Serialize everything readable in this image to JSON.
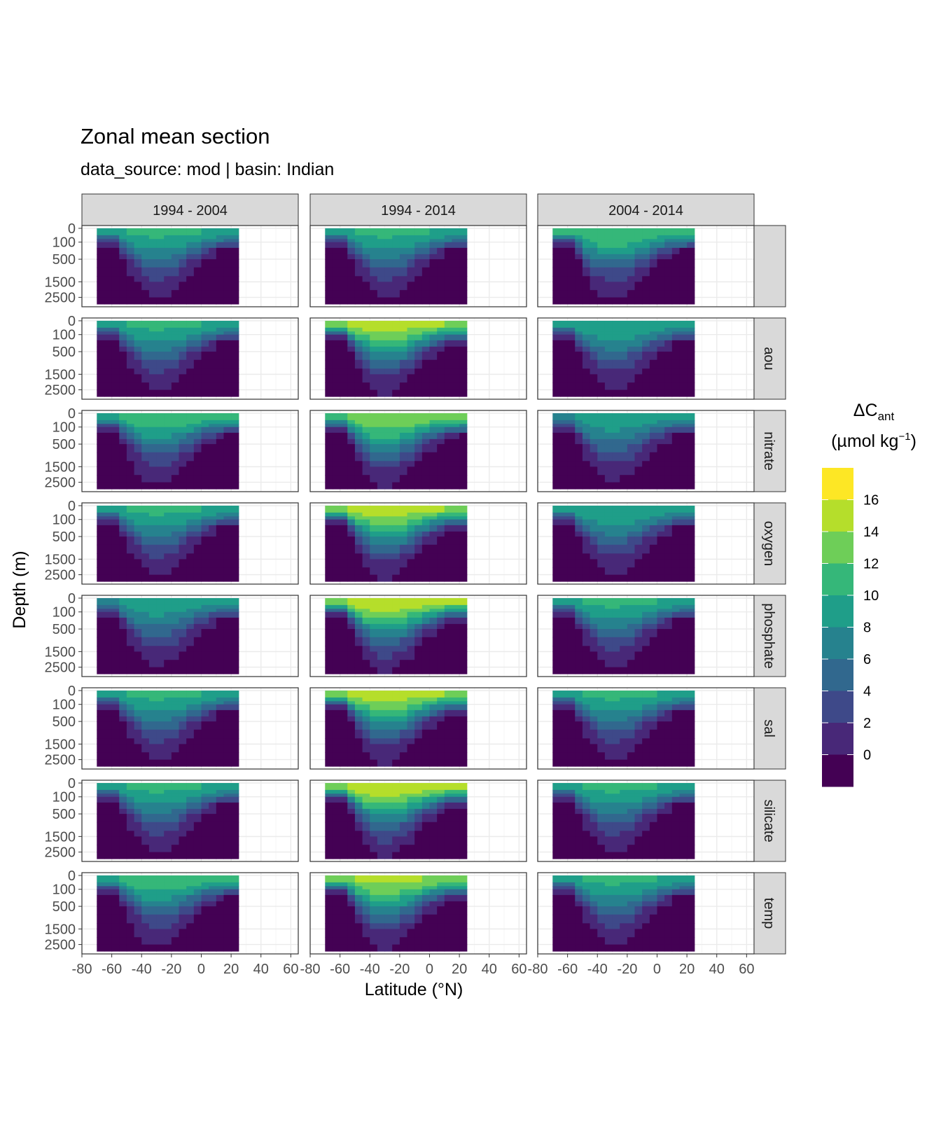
{
  "page": {
    "title": "Zonal mean section",
    "subtitle": "data_source:  mod | basin: Indian"
  },
  "chart_data": {
    "type": "heatmap",
    "subtype": "faceted filled-contour sections",
    "xlabel": "Latitude (°N)",
    "ylabel": "Depth (m)",
    "xlim": [
      -80,
      65
    ],
    "x_ticks": [
      -80,
      -60,
      -40,
      -20,
      0,
      20,
      40,
      60
    ],
    "x_tick_labels": [
      "-80",
      "-60",
      "-40",
      "-20",
      "0",
      "20",
      "40",
      "60"
    ],
    "y_scale": "square-root, reversed",
    "ylim": [
      3000,
      0
    ],
    "y_ticks": [
      0,
      100,
      500,
      1500,
      2500
    ],
    "y_tick_labels": [
      "0",
      "100",
      "500",
      "1500",
      "2500"
    ],
    "data_extent": {
      "lat_min": -70,
      "lat_max": 25
    },
    "column_facets": [
      "1994 - 2004",
      "1994 - 2014",
      "2004 - 2014"
    ],
    "row_facets": [
      "",
      "aou",
      "nitrate",
      "oxygen",
      "phosphate",
      "sal",
      "silicate",
      "temp"
    ],
    "panel_mean_levels": [
      [
        4.5,
        4.5,
        6.0
      ],
      [
        4.5,
        9.0,
        4.0
      ],
      [
        5.5,
        8.0,
        3.5
      ],
      [
        4.5,
        9.0,
        4.0
      ],
      [
        3.5,
        9.5,
        4.5
      ],
      [
        4.5,
        9.0,
        4.5
      ],
      [
        4.5,
        9.5,
        4.5
      ],
      [
        5.5,
        8.5,
        4.5
      ]
    ],
    "legend": {
      "title_main": "ΔC",
      "title_sub": "ant",
      "title_units": "(µmol kg",
      "title_units_sup": "−1",
      "title_units_close": ")",
      "position": "right",
      "breaks": [
        "16",
        "14",
        "12",
        "10",
        "8",
        "6",
        "4",
        "2",
        "0"
      ],
      "colors_top_to_bottom": [
        "#FDE725",
        "#B5DE2B",
        "#6ECE58",
        "#35B779",
        "#1F9E89",
        "#26828E",
        "#31688E",
        "#3E4989",
        "#482878",
        "#440154"
      ]
    },
    "colors": {
      "strip_fill": "#D9D9D9",
      "panel_border": "#333333",
      "grid_major": "#EBEBEB",
      "grid_minor": "#F5F5F5"
    },
    "grid": true
  }
}
